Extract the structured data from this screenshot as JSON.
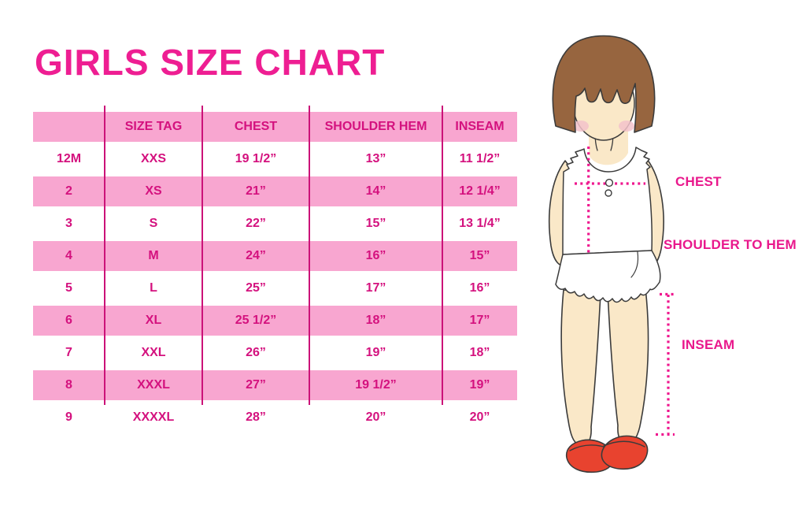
{
  "title": "GIRLS SIZE CHART",
  "table": {
    "headers": [
      "",
      "SIZE TAG",
      "CHEST",
      "SHOULDER HEM",
      "INSEAM"
    ],
    "rows": [
      [
        "12M",
        "XXS",
        "19 1/2”",
        "13”",
        "11 1/2”"
      ],
      [
        "2",
        "XS",
        "21”",
        "14”",
        "12 1/4”"
      ],
      [
        "3",
        "S",
        "22”",
        "15”",
        "13 1/4”"
      ],
      [
        "4",
        "M",
        "24”",
        "16”",
        "15”"
      ],
      [
        "5",
        "L",
        "25”",
        "17”",
        "16”"
      ],
      [
        "6",
        "XL",
        "25 1/2”",
        "18”",
        "17”"
      ],
      [
        "7",
        "XXL",
        "26”",
        "19”",
        "18”"
      ],
      [
        "8",
        "XXXL",
        "27”",
        "19 1/2”",
        "19”"
      ],
      [
        "9",
        "XXXXL",
        "28”",
        "20”",
        "20”"
      ]
    ]
  },
  "figure": {
    "labels": {
      "chest": "CHEST",
      "shoulder_to_hem": "SHOULDER TO HEM",
      "inseam": "INSEAM"
    }
  },
  "colors": {
    "title_pink": "#ee1e92",
    "row_band_pink": "#f8a6d0",
    "table_text_magenta": "#d4117e",
    "divider_magenta": "#cb1278",
    "measure_magenta": "#ef168e",
    "hair_brown": "#97653f",
    "skin": "#fae8c8",
    "blush": "#f2c2ca",
    "shoe_red": "#e8432f",
    "outline": "#3b3b3b"
  }
}
